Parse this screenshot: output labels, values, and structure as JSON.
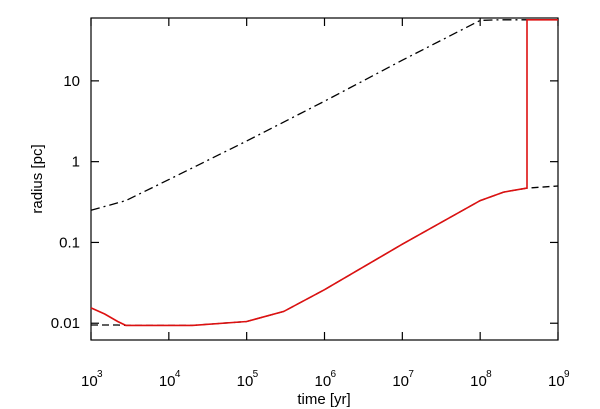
{
  "chart_data": {
    "type": "line",
    "xlabel": "time  [yr]",
    "ylabel": "radius [pc]",
    "x_scale": "log",
    "y_scale": "log",
    "xlim": [
      1000,
      1000000000
    ],
    "ylim": [
      0.0062,
      60
    ],
    "grid": false,
    "x_ticks": [
      {
        "value": 1000,
        "base": "10",
        "exp": "3"
      },
      {
        "value": 10000,
        "base": "10",
        "exp": "4"
      },
      {
        "value": 100000,
        "base": "10",
        "exp": "5"
      },
      {
        "value": 1000000,
        "base": "10",
        "exp": "6"
      },
      {
        "value": 10000000,
        "base": "10",
        "exp": "7"
      },
      {
        "value": 100000000,
        "base": "10",
        "exp": "8"
      },
      {
        "value": 1000000000,
        "base": "10",
        "exp": "9"
      }
    ],
    "y_ticks": [
      {
        "value": 0.01,
        "label": "0.01"
      },
      {
        "value": 0.1,
        "label": "0.1"
      },
      {
        "value": 1,
        "label": "1"
      },
      {
        "value": 10,
        "label": "10"
      }
    ],
    "series": [
      {
        "style": "dash-dot",
        "color": "#000000",
        "points": [
          [
            1000,
            0.25
          ],
          [
            2800,
            0.33
          ],
          [
            10000,
            0.6
          ],
          [
            100000,
            1.8
          ],
          [
            1000000,
            5.6
          ],
          [
            10000000,
            18
          ],
          [
            100000000,
            56
          ],
          [
            180000000,
            57
          ],
          [
            400000000,
            57
          ]
        ]
      },
      {
        "style": "dashed",
        "color": "#000000",
        "points": [
          [
            1000,
            0.0095
          ],
          [
            2200,
            0.0095
          ],
          [
            2800,
            0.0094
          ],
          [
            20000,
            0.0094
          ],
          [
            100000,
            0.0105
          ],
          [
            300000,
            0.014
          ],
          [
            1000000,
            0.026
          ],
          [
            10000000,
            0.095
          ],
          [
            100000000,
            0.33
          ],
          [
            200000000,
            0.42
          ],
          [
            400000000,
            0.47
          ],
          [
            1000000000,
            0.5
          ]
        ]
      },
      {
        "style": "solid",
        "color": "#dd1111",
        "points": [
          [
            1000,
            0.0155
          ],
          [
            1500,
            0.013
          ],
          [
            2200,
            0.0105
          ],
          [
            2800,
            0.0094
          ],
          [
            20000,
            0.0094
          ],
          [
            100000,
            0.0105
          ],
          [
            300000,
            0.014
          ],
          [
            1000000,
            0.026
          ],
          [
            10000000,
            0.095
          ],
          [
            100000000,
            0.33
          ],
          [
            200000000,
            0.42
          ],
          [
            400000000,
            0.47
          ],
          [
            400000000,
            57
          ],
          [
            1000000000,
            57
          ]
        ]
      }
    ]
  }
}
